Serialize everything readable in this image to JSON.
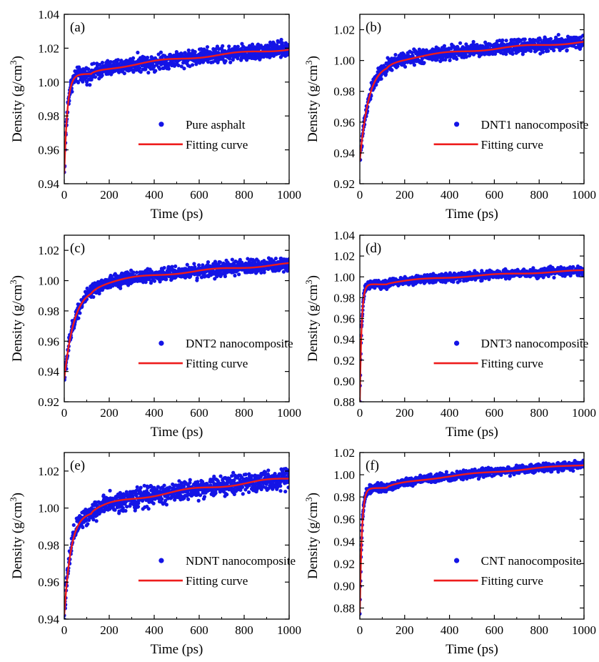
{
  "colors": {
    "points": "#1414e6",
    "fit": "#ee1c1c",
    "axes": "#000000"
  },
  "chart_data": [
    {
      "type": "scatter",
      "panel": "(a)",
      "xlabel": "Time (ps)",
      "ylabel": "Density (g/cm3)",
      "xlim": [
        0,
        1000
      ],
      "ylim": [
        0.94,
        1.04
      ],
      "xticks": [
        "0",
        "200",
        "400",
        "600",
        "800",
        "1000"
      ],
      "yticks": [
        "0.94",
        "0.96",
        "0.98",
        "1.00",
        "1.02",
        "1.04"
      ],
      "legend": {
        "points": "Pure asphalt",
        "fit": "Fitting curve"
      },
      "fit": {
        "y0": 0.946,
        "y1": 1.0045,
        "tau": 14,
        "plateau_end": 1.0195
      },
      "noise": 0.0035,
      "series": [
        {
          "name": "Pure asphalt",
          "x": [
            0,
            10,
            20,
            30,
            40,
            50,
            60,
            80,
            100,
            150,
            200,
            300,
            400,
            500,
            600,
            700,
            800,
            900,
            1000
          ],
          "values": [
            0.946,
            0.975,
            0.99,
            0.998,
            1.002,
            1.004,
            1.005,
            1.006,
            1.007,
            1.008,
            1.009,
            1.011,
            1.013,
            1.014,
            1.016,
            1.017,
            1.018,
            1.019,
            1.019
          ]
        }
      ]
    },
    {
      "type": "scatter",
      "panel": "(b)",
      "xlabel": "Time (ps)",
      "ylabel": "Density (g/cm3)",
      "xlim": [
        0,
        1000
      ],
      "ylim": [
        0.92,
        1.03
      ],
      "xticks": [
        "0",
        "200",
        "400",
        "600",
        "800",
        "1000"
      ],
      "yticks": [
        "0.92",
        "0.94",
        "0.96",
        "0.98",
        "1.00",
        "1.02"
      ],
      "legend": {
        "points": "DNT1 nanocomposite",
        "fit": "Fitting curve"
      },
      "fit": {
        "y0": 0.935,
        "y1": 0.998,
        "tau": 40,
        "plateau_end": 1.012
      },
      "noise": 0.0035,
      "series": [
        {
          "name": "DNT1 nanocomposite",
          "x": [
            0,
            10,
            20,
            40,
            60,
            80,
            100,
            150,
            200,
            300,
            400,
            500,
            600,
            700,
            800,
            900,
            1000
          ],
          "values": [
            0.935,
            0.96,
            0.972,
            0.982,
            0.988,
            0.992,
            0.995,
            0.998,
            1.0,
            1.003,
            1.005,
            1.007,
            1.008,
            1.009,
            1.01,
            1.011,
            1.011
          ]
        }
      ]
    },
    {
      "type": "scatter",
      "panel": "(c)",
      "xlabel": "Time (ps)",
      "ylabel": "Density (g/cm3)",
      "xlim": [
        0,
        1000
      ],
      "ylim": [
        0.92,
        1.03
      ],
      "xticks": [
        "0",
        "200",
        "400",
        "600",
        "800",
        "1000"
      ],
      "yticks": [
        "0.92",
        "0.94",
        "0.96",
        "0.98",
        "1.00",
        "1.02"
      ],
      "legend": {
        "points": "DNT2 nanocomposite",
        "fit": "Fitting curve"
      },
      "fit": {
        "y0": 0.935,
        "y1": 0.996,
        "tau": 45,
        "plateau_end": 1.011
      },
      "noise": 0.0035,
      "series": [
        {
          "name": "DNT2 nanocomposite",
          "x": [
            0,
            10,
            20,
            40,
            60,
            80,
            100,
            150,
            200,
            300,
            400,
            500,
            600,
            700,
            800,
            900,
            1000
          ],
          "values": [
            0.935,
            0.958,
            0.97,
            0.98,
            0.986,
            0.99,
            0.993,
            0.996,
            0.998,
            1.002,
            1.004,
            1.005,
            1.007,
            1.008,
            1.009,
            1.01,
            1.01
          ]
        }
      ]
    },
    {
      "type": "scatter",
      "panel": "(d)",
      "xlabel": "Time (ps)",
      "ylabel": "Density (g/cm3)",
      "xlim": [
        0,
        1000
      ],
      "ylim": [
        0.88,
        1.04
      ],
      "xticks": [
        "0",
        "200",
        "400",
        "600",
        "800",
        "1000"
      ],
      "yticks": [
        "0.88",
        "0.90",
        "0.92",
        "0.94",
        "0.96",
        "0.98",
        "1.00",
        "1.02",
        "1.04"
      ],
      "legend": {
        "points": "DNT3 nanocomposite",
        "fit": "Fitting curve"
      },
      "fit": {
        "y0": 0.88,
        "y1": 0.993,
        "tau": 8,
        "plateau_end": 1.006
      },
      "noise": 0.003,
      "series": [
        {
          "name": "DNT3 nanocomposite",
          "x": [
            0,
            10,
            20,
            30,
            40,
            60,
            100,
            200,
            300,
            400,
            500,
            600,
            700,
            800,
            900,
            1000
          ],
          "values": [
            0.88,
            0.96,
            0.98,
            0.988,
            0.99,
            0.993,
            0.995,
            0.998,
            1.0,
            1.001,
            1.002,
            1.003,
            1.004,
            1.004,
            1.005,
            1.006
          ]
        }
      ]
    },
    {
      "type": "scatter",
      "panel": "(e)",
      "xlabel": "Time (ps)",
      "ylabel": "Density (g/cm3)",
      "xlim": [
        0,
        1000
      ],
      "ylim": [
        0.94,
        1.03
      ],
      "xticks": [
        "0",
        "200",
        "400",
        "600",
        "800",
        "1000"
      ],
      "yticks": [
        "0.94",
        "0.96",
        "0.98",
        "1.00",
        "1.02"
      ],
      "legend": {
        "points": "NDNT nanocomposite",
        "fit": "Fitting curve"
      },
      "fit": {
        "y0": 0.942,
        "y1": 0.998,
        "tau": 30,
        "plateau_end": 1.016
      },
      "noise": 0.004,
      "series": [
        {
          "name": "NDNT nanocomposite",
          "x": [
            0,
            10,
            20,
            40,
            60,
            80,
            100,
            150,
            200,
            300,
            400,
            500,
            600,
            700,
            800,
            900,
            1000
          ],
          "values": [
            0.942,
            0.965,
            0.978,
            0.99,
            0.995,
            0.998,
            1.0,
            1.003,
            1.005,
            1.009,
            1.011,
            1.012,
            1.013,
            1.014,
            1.015,
            1.015,
            1.013
          ]
        }
      ]
    },
    {
      "type": "scatter",
      "panel": "(f)",
      "xlabel": "Time (ps)",
      "ylabel": "Density (g/cm3)",
      "xlim": [
        0,
        1000
      ],
      "ylim": [
        0.87,
        1.02
      ],
      "xticks": [
        "0",
        "200",
        "400",
        "600",
        "800",
        "1000"
      ],
      "yticks": [
        "0.88",
        "0.90",
        "0.92",
        "0.94",
        "0.96",
        "0.98",
        "1.00",
        "1.02"
      ],
      "legend": {
        "points": "CNT nanocomposite",
        "fit": "Fitting curve"
      },
      "fit": {
        "y0": 0.875,
        "y1": 0.988,
        "tau": 9,
        "plateau_end": 1.009
      },
      "noise": 0.0028,
      "series": [
        {
          "name": "CNT nanocomposite",
          "x": [
            0,
            10,
            20,
            30,
            40,
            60,
            100,
            200,
            300,
            400,
            500,
            600,
            700,
            800,
            900,
            1000
          ],
          "values": [
            0.875,
            0.955,
            0.975,
            0.983,
            0.986,
            0.988,
            0.99,
            0.995,
            0.999,
            1.002,
            1.004,
            1.006,
            1.007,
            1.008,
            1.009,
            1.009
          ]
        }
      ]
    }
  ]
}
